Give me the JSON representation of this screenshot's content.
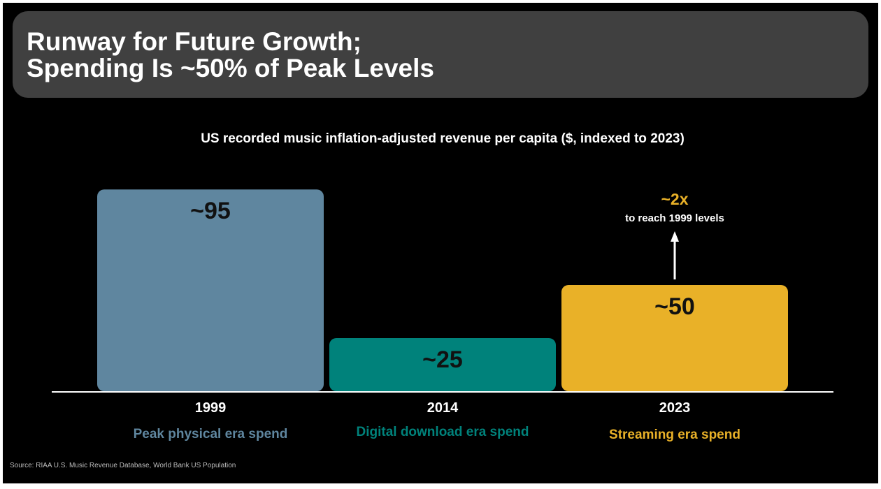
{
  "slide": {
    "title_line1": "Runway for Future Growth;",
    "title_line2": "Spending Is ~50% of Peak Levels",
    "source": "Source: RIAA U.S. Music Revenue Database, World Bank US Population"
  },
  "chart_data": {
    "type": "bar",
    "title": "US recorded music inflation-adjusted revenue per capita ($, indexed to 2023)",
    "xlabel": "",
    "ylabel": "",
    "grid": false,
    "ylim": [
      0,
      100
    ],
    "categories": [
      "1999",
      "2014",
      "2023"
    ],
    "values": [
      95,
      25,
      50
    ],
    "value_labels": [
      "~95",
      "~25",
      "~50"
    ],
    "subtitles": [
      "Peak physical era spend",
      "Digital download era spend",
      "Streaming era spend"
    ],
    "colors": [
      "#5f869f",
      "#00827b",
      "#e9b128"
    ],
    "annotation": {
      "category": "2023",
      "headline": "~2x",
      "text": "to reach 1999 levels",
      "color": "#e9b128"
    }
  }
}
